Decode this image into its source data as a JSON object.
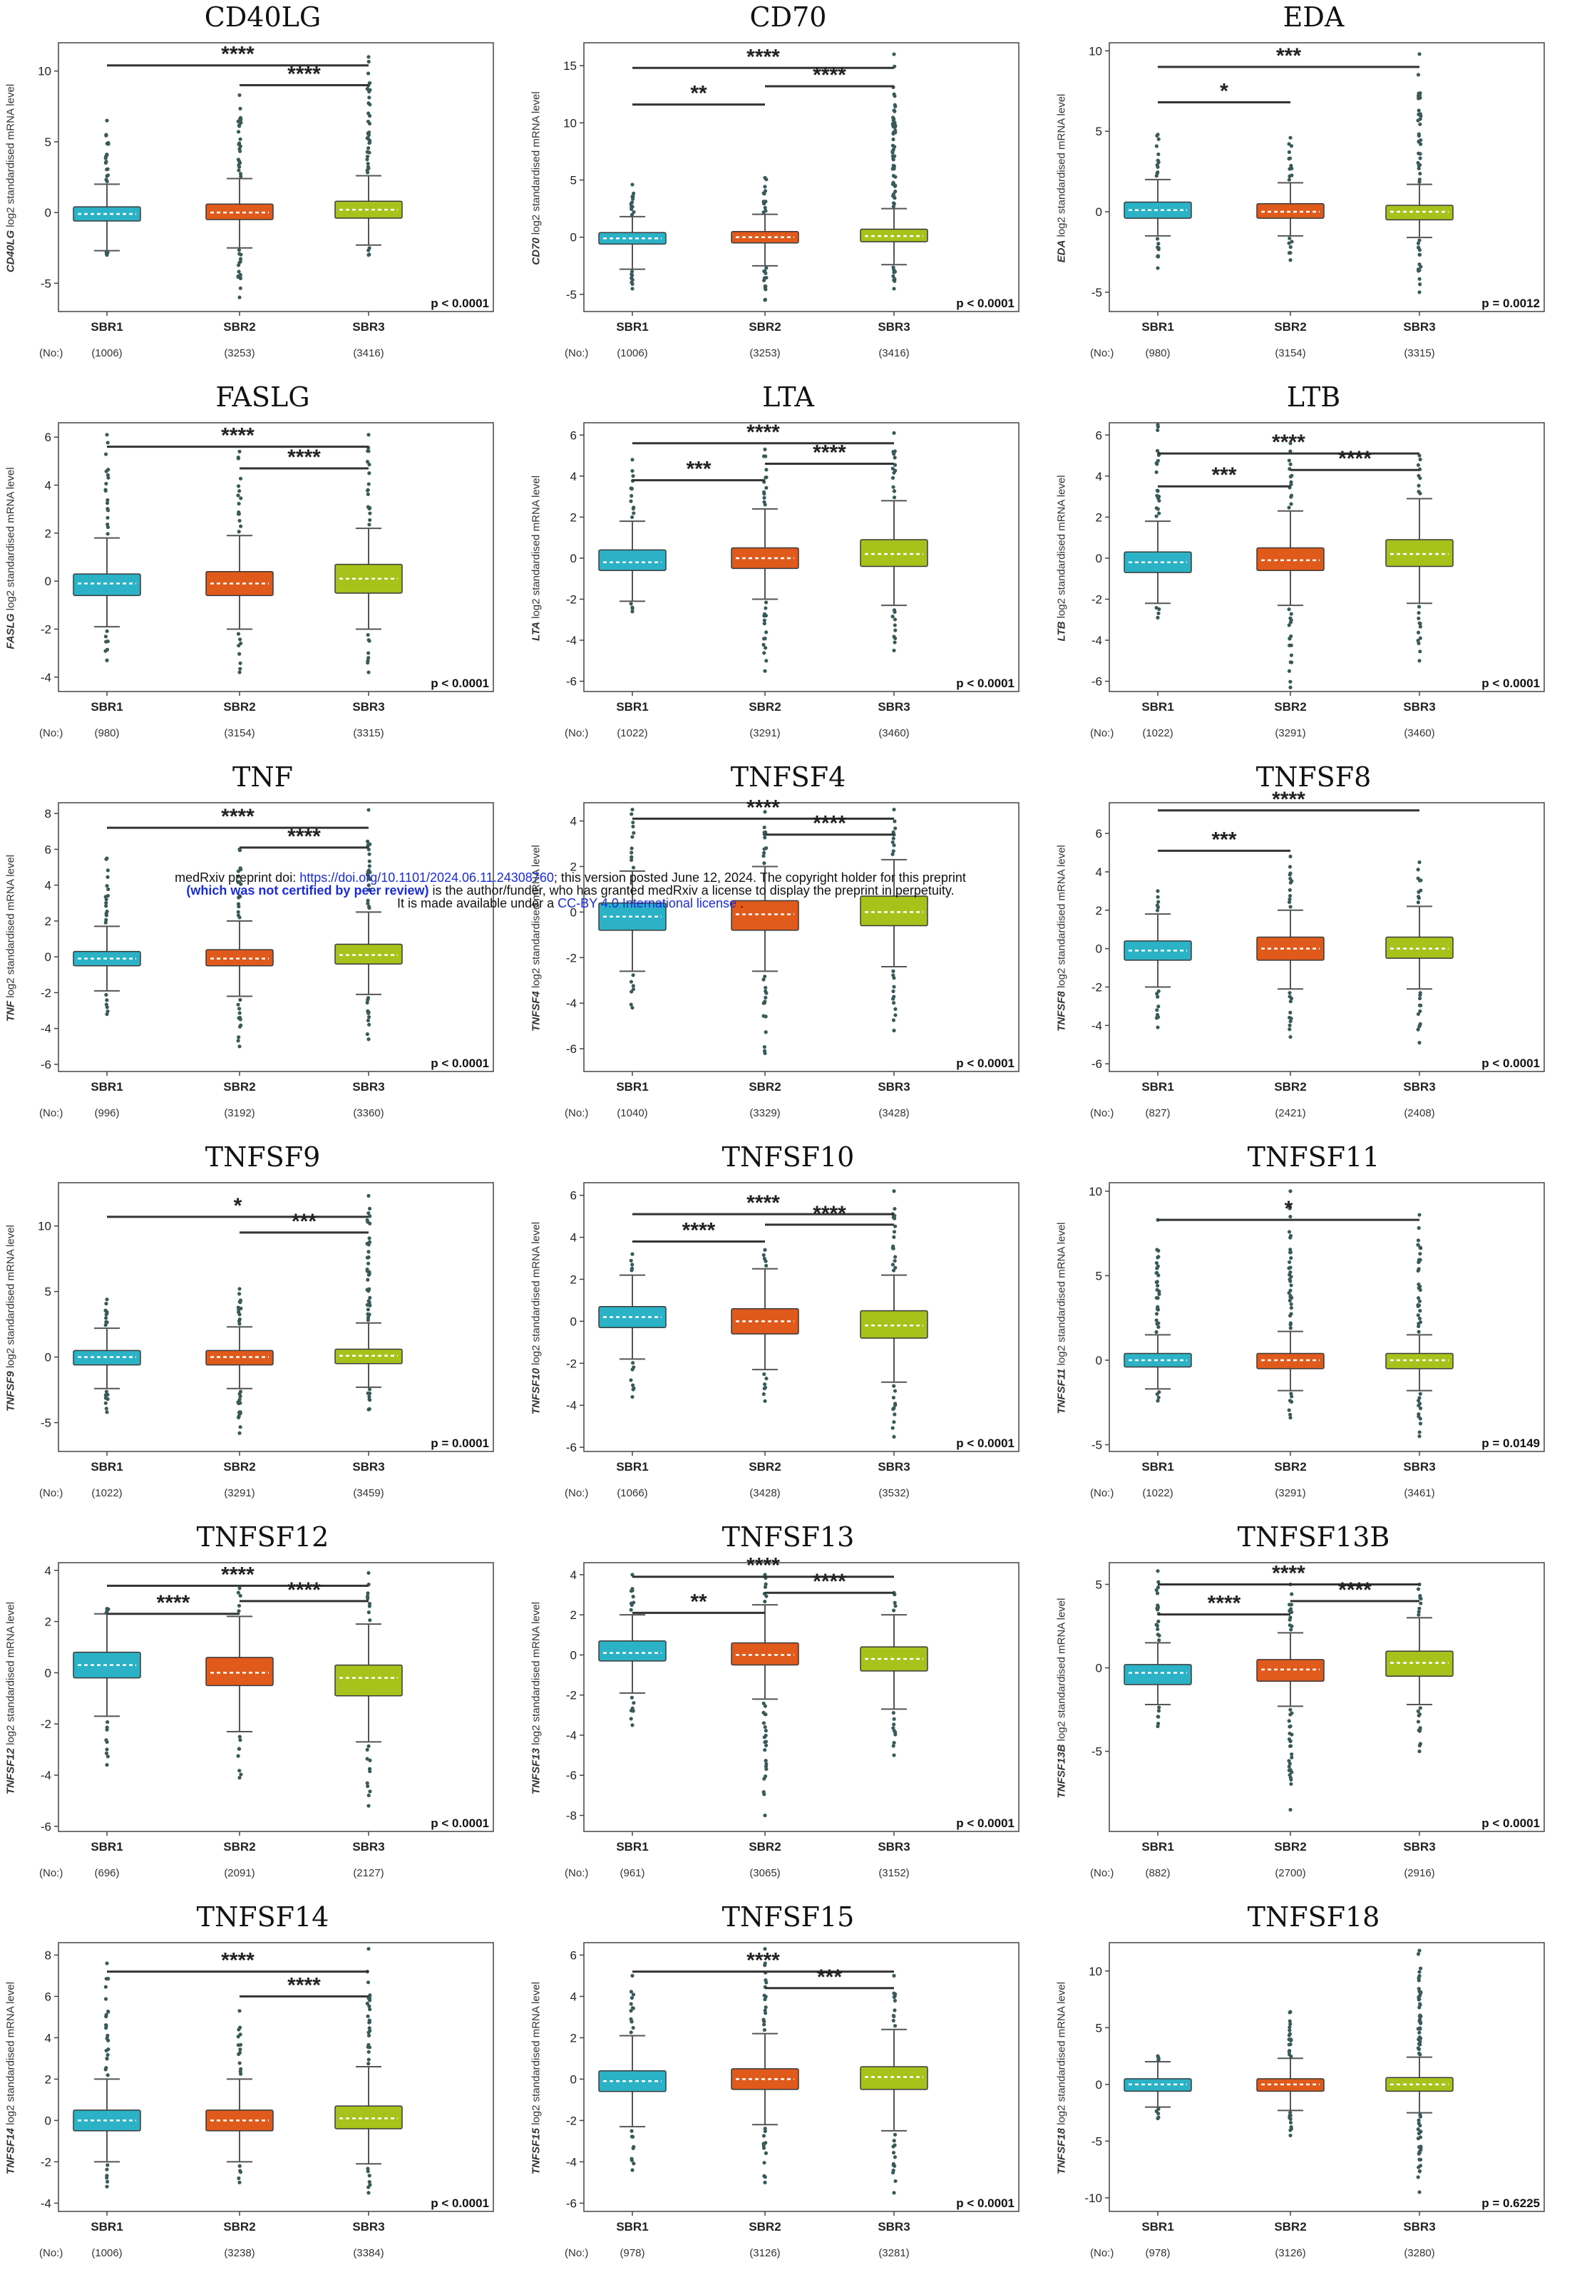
{
  "notice": {
    "line1_a": "medRxiv preprint doi: ",
    "line1_link": "https://doi.org/10.1101/2024.06.11.24308760",
    "line1_b": "; this version posted June 12, 2024. The copyright holder for this preprint",
    "line2_a": "(which was not certified by peer review)",
    "line2_b": " is the author/funder, who has granted medRxiv a license to display the preprint in perpetuity.",
    "line3_a": "It is made available under a ",
    "line3_link": "CC-BY 4.0 International license",
    "line3_b": " ."
  },
  "common": {
    "ylabel_suffix": " log2 standardised mRNA level",
    "groups": [
      "SBR1",
      "SBR2",
      "SBR3"
    ],
    "n_prefix": "(No:)",
    "colors": [
      "#2bb2c6",
      "#e05a1c",
      "#a7c21a"
    ]
  },
  "chart_data": [
    {
      "type": "box",
      "title": "CD40LG",
      "ylim": [
        -7,
        12
      ],
      "yticks": [
        -5,
        0,
        5,
        10
      ],
      "n": [
        "(1006)",
        "(3253)",
        "(3416)"
      ],
      "p": "p < 0.0001",
      "boxes": [
        [
          -2.7,
          -0.6,
          -0.1,
          0.4,
          2.0,
          -3.0,
          6.5
        ],
        [
          -2.5,
          -0.5,
          0.0,
          0.6,
          2.4,
          -6.0,
          8.3
        ],
        [
          -2.3,
          -0.4,
          0.2,
          0.8,
          2.6,
          -3.0,
          11.0
        ]
      ],
      "brackets": [
        {
          "from": 0,
          "to": 2,
          "y": 10.4,
          "stars": "****"
        },
        {
          "from": 1,
          "to": 2,
          "y": 9.0,
          "stars": "****"
        }
      ]
    },
    {
      "type": "box",
      "title": "CD70",
      "ylim": [
        -6.5,
        17
      ],
      "yticks": [
        -5,
        0,
        5,
        10,
        15
      ],
      "n": [
        "(1006)",
        "(3253)",
        "(3416)"
      ],
      "p": "p < 0.0001",
      "boxes": [
        [
          -2.8,
          -0.6,
          -0.1,
          0.4,
          1.8,
          -4.5,
          4.6
        ],
        [
          -2.5,
          -0.5,
          0.0,
          0.5,
          2.0,
          -5.5,
          5.2
        ],
        [
          -2.4,
          -0.4,
          0.1,
          0.7,
          2.5,
          -4.5,
          16.0
        ]
      ],
      "brackets": [
        {
          "from": 0,
          "to": 2,
          "y": 14.8,
          "stars": "****"
        },
        {
          "from": 0,
          "to": 1,
          "y": 11.6,
          "stars": "**"
        },
        {
          "from": 1,
          "to": 2,
          "y": 13.2,
          "stars": "****"
        }
      ]
    },
    {
      "type": "box",
      "title": "EDA",
      "ylim": [
        -6.2,
        10.5
      ],
      "yticks": [
        -5,
        0,
        5,
        10
      ],
      "n": [
        "(980)",
        "(3154)",
        "(3315)"
      ],
      "p": "p = 0.0012",
      "boxes": [
        [
          -1.5,
          -0.4,
          0.1,
          0.6,
          2.0,
          -3.5,
          4.8
        ],
        [
          -1.5,
          -0.4,
          0.0,
          0.5,
          1.8,
          -3.0,
          4.6
        ],
        [
          -1.6,
          -0.5,
          0.0,
          0.4,
          1.7,
          -5.0,
          9.8
        ]
      ],
      "brackets": [
        {
          "from": 0,
          "to": 2,
          "y": 9.0,
          "stars": "***"
        },
        {
          "from": 0,
          "to": 1,
          "y": 6.8,
          "stars": "*"
        }
      ]
    },
    {
      "type": "box",
      "title": "FASLG",
      "ylim": [
        -4.6,
        6.6
      ],
      "yticks": [
        -4,
        -2,
        0,
        2,
        4,
        6
      ],
      "n": [
        "(980)",
        "(3154)",
        "(3315)"
      ],
      "p": "p < 0.0001",
      "boxes": [
        [
          -1.9,
          -0.6,
          -0.1,
          0.3,
          1.8,
          -3.3,
          6.1
        ],
        [
          -2.0,
          -0.6,
          -0.1,
          0.4,
          1.9,
          -3.8,
          5.4
        ],
        [
          -2.0,
          -0.5,
          0.1,
          0.7,
          2.2,
          -3.8,
          6.1
        ]
      ],
      "brackets": [
        {
          "from": 0,
          "to": 2,
          "y": 5.6,
          "stars": "****"
        },
        {
          "from": 1,
          "to": 2,
          "y": 4.7,
          "stars": "****"
        }
      ]
    },
    {
      "type": "box",
      "title": "LTA",
      "ylim": [
        -6.5,
        6.6
      ],
      "yticks": [
        -6,
        -4,
        -2,
        0,
        2,
        4,
        6
      ],
      "n": [
        "(1022)",
        "(3291)",
        "(3460)"
      ],
      "p": "p < 0.0001",
      "boxes": [
        [
          -2.1,
          -0.6,
          -0.2,
          0.4,
          1.8,
          -2.6,
          4.8
        ],
        [
          -2.0,
          -0.5,
          0.0,
          0.5,
          2.4,
          -5.5,
          5.3
        ],
        [
          -2.3,
          -0.4,
          0.2,
          0.9,
          2.8,
          -4.5,
          6.1
        ]
      ],
      "brackets": [
        {
          "from": 0,
          "to": 2,
          "y": 5.6,
          "stars": "****"
        },
        {
          "from": 0,
          "to": 1,
          "y": 3.8,
          "stars": "***"
        },
        {
          "from": 1,
          "to": 2,
          "y": 4.6,
          "stars": "****"
        }
      ]
    },
    {
      "type": "box",
      "title": "LTB",
      "ylim": [
        -6.5,
        6.6
      ],
      "yticks": [
        -6,
        -4,
        -2,
        0,
        2,
        4,
        6
      ],
      "n": [
        "(1022)",
        "(3291)",
        "(3460)"
      ],
      "p": "p < 0.0001",
      "boxes": [
        [
          -2.2,
          -0.7,
          -0.2,
          0.3,
          1.8,
          -2.9,
          6.5
        ],
        [
          -2.3,
          -0.6,
          -0.1,
          0.5,
          2.3,
          -6.3,
          5.6
        ],
        [
          -2.2,
          -0.4,
          0.2,
          0.9,
          2.9,
          -5.0,
          5.0
        ]
      ],
      "brackets": [
        {
          "from": 0,
          "to": 2,
          "y": 5.1,
          "stars": "****"
        },
        {
          "from": 0,
          "to": 1,
          "y": 3.5,
          "stars": "***"
        },
        {
          "from": 1,
          "to": 2,
          "y": 4.3,
          "stars": "****"
        }
      ]
    },
    {
      "type": "box",
      "title": "TNF",
      "ylim": [
        -6.4,
        8.6
      ],
      "yticks": [
        -6,
        -4,
        -2,
        0,
        2,
        4,
        6,
        8
      ],
      "n": [
        "(996)",
        "(3192)",
        "(3360)"
      ],
      "p": "p < 0.0001",
      "boxes": [
        [
          -1.9,
          -0.5,
          -0.1,
          0.3,
          1.7,
          -3.2,
          5.5
        ],
        [
          -2.2,
          -0.5,
          -0.1,
          0.4,
          2.0,
          -5.0,
          6.0
        ],
        [
          -2.1,
          -0.4,
          0.1,
          0.7,
          2.5,
          -4.6,
          8.2
        ]
      ],
      "brackets": [
        {
          "from": 0,
          "to": 2,
          "y": 7.2,
          "stars": "****"
        },
        {
          "from": 1,
          "to": 2,
          "y": 6.1,
          "stars": "****"
        }
      ]
    },
    {
      "type": "box",
      "title": "TNFSF4",
      "ylim": [
        -7.0,
        4.8
      ],
      "yticks": [
        -6,
        -4,
        -2,
        0,
        2,
        4
      ],
      "n": [
        "(1040)",
        "(3329)",
        "(3428)"
      ],
      "p": "p < 0.0001",
      "boxes": [
        [
          -2.6,
          -0.8,
          -0.2,
          0.4,
          1.8,
          -4.2,
          4.5
        ],
        [
          -2.6,
          -0.8,
          -0.1,
          0.5,
          2.0,
          -6.2,
          4.4
        ],
        [
          -2.4,
          -0.6,
          0.0,
          0.7,
          2.3,
          -5.2,
          4.5
        ]
      ],
      "brackets": [
        {
          "from": 0,
          "to": 2,
          "y": 4.1,
          "stars": "****"
        },
        {
          "from": 1,
          "to": 2,
          "y": 3.4,
          "stars": "****"
        }
      ]
    },
    {
      "type": "box",
      "title": "TNFSF8",
      "ylim": [
        -6.4,
        7.6
      ],
      "yticks": [
        -6,
        -4,
        -2,
        0,
        2,
        4,
        6
      ],
      "n": [
        "(827)",
        "(2421)",
        "(2408)"
      ],
      "p": "p < 0.0001",
      "boxes": [
        [
          -2.0,
          -0.6,
          -0.1,
          0.4,
          1.8,
          -4.1,
          3.0
        ],
        [
          -2.1,
          -0.6,
          0.0,
          0.6,
          2.0,
          -4.6,
          4.8
        ],
        [
          -2.1,
          -0.5,
          0.0,
          0.6,
          2.2,
          -4.9,
          4.5
        ]
      ],
      "brackets": [
        {
          "from": 0,
          "to": 2,
          "y": 7.2,
          "stars": "****"
        },
        {
          "from": 0,
          "to": 1,
          "y": 5.1,
          "stars": "***"
        }
      ]
    },
    {
      "type": "box",
      "title": "TNFSF9",
      "ylim": [
        -7.2,
        13.3
      ],
      "yticks": [
        -5,
        0,
        5,
        10
      ],
      "n": [
        "(1022)",
        "(3291)",
        "(3459)"
      ],
      "p": "p = 0.0001",
      "boxes": [
        [
          -2.4,
          -0.6,
          0.0,
          0.5,
          2.2,
          -4.2,
          4.4
        ],
        [
          -2.4,
          -0.6,
          0.0,
          0.5,
          2.3,
          -5.8,
          5.2
        ],
        [
          -2.3,
          -0.5,
          0.1,
          0.6,
          2.6,
          -4.0,
          12.3
        ]
      ],
      "brackets": [
        {
          "from": 0,
          "to": 2,
          "y": 10.7,
          "stars": "*"
        },
        {
          "from": 1,
          "to": 2,
          "y": 9.5,
          "stars": "***"
        }
      ]
    },
    {
      "type": "box",
      "title": "TNFSF10",
      "ylim": [
        -6.2,
        6.6
      ],
      "yticks": [
        -6,
        -4,
        -2,
        0,
        2,
        4,
        6
      ],
      "n": [
        "(1066)",
        "(3428)",
        "(3532)"
      ],
      "p": "p < 0.0001",
      "boxes": [
        [
          -1.8,
          -0.3,
          0.2,
          0.7,
          2.2,
          -3.6,
          3.2
        ],
        [
          -2.3,
          -0.6,
          0.0,
          0.6,
          2.5,
          -3.8,
          3.4
        ],
        [
          -2.9,
          -0.8,
          -0.2,
          0.5,
          2.2,
          -5.5,
          6.2
        ]
      ],
      "brackets": [
        {
          "from": 0,
          "to": 2,
          "y": 5.1,
          "stars": "****"
        },
        {
          "from": 0,
          "to": 1,
          "y": 3.8,
          "stars": "****"
        },
        {
          "from": 1,
          "to": 2,
          "y": 4.6,
          "stars": "****"
        }
      ]
    },
    {
      "type": "box",
      "title": "TNFSF11",
      "ylim": [
        -5.4,
        10.5
      ],
      "yticks": [
        -5,
        0,
        5,
        10
      ],
      "n": [
        "(1022)",
        "(3291)",
        "(3461)"
      ],
      "p": "p = 0.0149",
      "boxes": [
        [
          -1.7,
          -0.4,
          0.0,
          0.4,
          1.5,
          -2.4,
          8.3
        ],
        [
          -1.8,
          -0.5,
          0.0,
          0.4,
          1.7,
          -3.4,
          10.0
        ],
        [
          -1.8,
          -0.5,
          0.0,
          0.4,
          1.5,
          -4.5,
          8.6
        ]
      ],
      "brackets": [
        {
          "from": 0,
          "to": 2,
          "y": 8.3,
          "stars": "*"
        }
      ]
    },
    {
      "type": "box",
      "title": "TNFSF12",
      "ylim": [
        -6.2,
        4.3
      ],
      "yticks": [
        -6,
        -4,
        -2,
        0,
        2,
        4
      ],
      "n": [
        "(696)",
        "(2091)",
        "(2127)"
      ],
      "p": "p < 0.0001",
      "boxes": [
        [
          -1.7,
          -0.2,
          0.3,
          0.8,
          2.3,
          -3.6,
          2.5
        ],
        [
          -2.3,
          -0.5,
          0.0,
          0.6,
          2.2,
          -4.1,
          3.3
        ],
        [
          -2.7,
          -0.9,
          -0.2,
          0.3,
          1.9,
          -5.2,
          3.9
        ]
      ],
      "brackets": [
        {
          "from": 0,
          "to": 2,
          "y": 3.4,
          "stars": "****"
        },
        {
          "from": 0,
          "to": 1,
          "y": 2.3,
          "stars": "****"
        },
        {
          "from": 1,
          "to": 2,
          "y": 2.8,
          "stars": "****"
        }
      ]
    },
    {
      "type": "box",
      "title": "TNFSF13",
      "ylim": [
        -8.8,
        4.6
      ],
      "yticks": [
        -8,
        -6,
        -4,
        -2,
        0,
        2,
        4
      ],
      "n": [
        "(961)",
        "(3065)",
        "(3152)"
      ],
      "p": "p < 0.0001",
      "boxes": [
        [
          -1.9,
          -0.3,
          0.1,
          0.7,
          2.0,
          -3.5,
          4.0
        ],
        [
          -2.2,
          -0.5,
          0.0,
          0.6,
          2.5,
          -8.0,
          4.0
        ],
        [
          -2.7,
          -0.8,
          -0.2,
          0.4,
          2.0,
          -5.0,
          3.1
        ]
      ],
      "brackets": [
        {
          "from": 0,
          "to": 2,
          "y": 3.9,
          "stars": "****"
        },
        {
          "from": 0,
          "to": 1,
          "y": 2.1,
          "stars": "**"
        },
        {
          "from": 1,
          "to": 2,
          "y": 3.1,
          "stars": "****"
        }
      ]
    },
    {
      "type": "box",
      "title": "TNFSF13B",
      "ylim": [
        -9.8,
        6.3
      ],
      "yticks": [
        -5,
        0,
        5
      ],
      "n": [
        "(882)",
        "(2700)",
        "(2916)"
      ],
      "p": "p < 0.0001",
      "boxes": [
        [
          -2.2,
          -1.0,
          -0.3,
          0.2,
          1.5,
          -3.5,
          5.8
        ],
        [
          -2.3,
          -0.8,
          -0.1,
          0.5,
          2.1,
          -8.5,
          5.0
        ],
        [
          -2.2,
          -0.5,
          0.3,
          1.0,
          3.0,
          -5.0,
          5.0
        ]
      ],
      "brackets": [
        {
          "from": 0,
          "to": 2,
          "y": 5.0,
          "stars": "****"
        },
        {
          "from": 0,
          "to": 1,
          "y": 3.2,
          "stars": "****"
        },
        {
          "from": 1,
          "to": 2,
          "y": 4.0,
          "stars": "****"
        }
      ]
    },
    {
      "type": "box",
      "title": "TNFSF14",
      "ylim": [
        -4.4,
        8.6
      ],
      "yticks": [
        -4,
        -2,
        0,
        2,
        4,
        6,
        8
      ],
      "n": [
        "(1006)",
        "(3238)",
        "(3384)"
      ],
      "p": "p < 0.0001",
      "boxes": [
        [
          -2.0,
          -0.5,
          0.0,
          0.5,
          2.0,
          -3.2,
          7.6
        ],
        [
          -2.0,
          -0.5,
          0.0,
          0.5,
          2.0,
          -3.0,
          5.3
        ],
        [
          -2.1,
          -0.4,
          0.1,
          0.7,
          2.6,
          -3.5,
          8.3
        ]
      ],
      "brackets": [
        {
          "from": 0,
          "to": 2,
          "y": 7.2,
          "stars": "****"
        },
        {
          "from": 1,
          "to": 2,
          "y": 6.0,
          "stars": "****"
        }
      ]
    },
    {
      "type": "box",
      "title": "TNFSF15",
      "ylim": [
        -6.4,
        6.6
      ],
      "yticks": [
        -6,
        -4,
        -2,
        0,
        2,
        4,
        6
      ],
      "n": [
        "(978)",
        "(3126)",
        "(3281)"
      ],
      "p": "p < 0.0001",
      "boxes": [
        [
          -2.3,
          -0.6,
          -0.1,
          0.4,
          2.1,
          -4.4,
          5.0
        ],
        [
          -2.2,
          -0.5,
          0.0,
          0.5,
          2.2,
          -5.0,
          6.3
        ],
        [
          -2.5,
          -0.5,
          0.1,
          0.6,
          2.4,
          -5.5,
          5.0
        ]
      ],
      "brackets": [
        {
          "from": 0,
          "to": 2,
          "y": 5.2,
          "stars": "****"
        },
        {
          "from": 1,
          "to": 2,
          "y": 4.4,
          "stars": "***"
        }
      ]
    },
    {
      "type": "box",
      "title": "TNFSF18",
      "ylim": [
        -11.2,
        12.5
      ],
      "yticks": [
        -10,
        -5,
        0,
        5,
        10
      ],
      "n": [
        "(978)",
        "(3126)",
        "(3280)"
      ],
      "p": "p = 0.6225",
      "boxes": [
        [
          -2.0,
          -0.6,
          0.0,
          0.5,
          2.0,
          -3.0,
          2.5
        ],
        [
          -2.3,
          -0.6,
          0.0,
          0.5,
          2.3,
          -4.5,
          6.4
        ],
        [
          -2.5,
          -0.6,
          0.0,
          0.6,
          2.4,
          -9.5,
          11.8
        ]
      ],
      "brackets": []
    }
  ]
}
